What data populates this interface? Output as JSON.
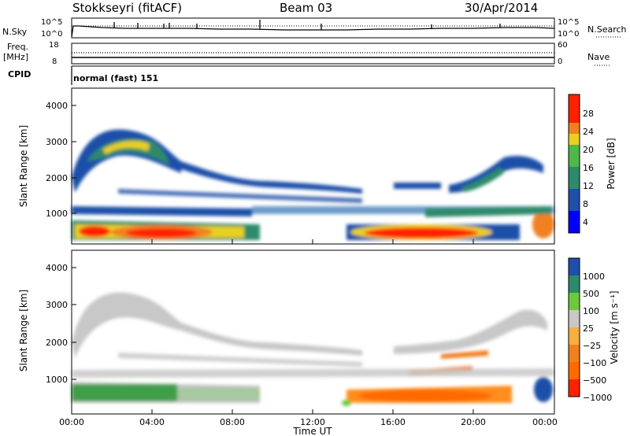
{
  "header": {
    "station": "Stokkseyri (fitACF)",
    "beam": "Beam 03",
    "date": "30/Apr/2014"
  },
  "panels": {
    "nsky_label": "N.Sky",
    "nsky_ticks": [
      "10^5",
      "10^0"
    ],
    "nsearch_label": "N.Search",
    "nsearch_ticks": [
      "10^5",
      "10^0"
    ],
    "freq_label_1": "Freq.",
    "freq_label_2": "[MHz]",
    "freq_ticks": [
      "18",
      "8"
    ],
    "nave_label": "Nave",
    "nave_ticks": [
      "60",
      "0"
    ],
    "cpid_label": "CPID",
    "cpid_value": "normal (fast) 151"
  },
  "chart_data": [
    {
      "type": "heatmap",
      "name": "power",
      "ylabel": "Slant Range [km]",
      "yticks": [
        "4000",
        "3000",
        "2000",
        "1000"
      ],
      "ylim": [
        180,
        4500
      ],
      "xlabel": "",
      "colorbar": {
        "label": "Power [dB]",
        "ticks": [
          "28",
          "24",
          "20",
          "16",
          "12",
          "8",
          "4"
        ],
        "colors": [
          "#0000ff",
          "#1f4fa8",
          "#2d8a6a",
          "#4fb84a",
          "#e8d020",
          "#f08020",
          "#ff2000"
        ]
      }
    },
    {
      "type": "heatmap",
      "name": "velocity",
      "ylabel": "Slant Range [km]",
      "yticks": [
        "4000",
        "3000",
        "2000",
        "1000"
      ],
      "ylim": [
        180,
        4500
      ],
      "xlabel": "Time UT",
      "xticks": [
        "00:00",
        "04:00",
        "08:00",
        "12:00",
        "16:00",
        "20:00",
        "00:00"
      ],
      "colorbar": {
        "label": "Velocity [m s⁻¹]",
        "ticks": [
          "1000",
          "500",
          "100",
          "25",
          "−25",
          "−100",
          "−500",
          "−1000"
        ],
        "colors": [
          "#1f4fa8",
          "#2d8a6a",
          "#3f9e4a",
          "#6cc93c",
          "#c8c8c8",
          "#f08020",
          "#ff6a00",
          "#ff2000"
        ]
      }
    }
  ]
}
